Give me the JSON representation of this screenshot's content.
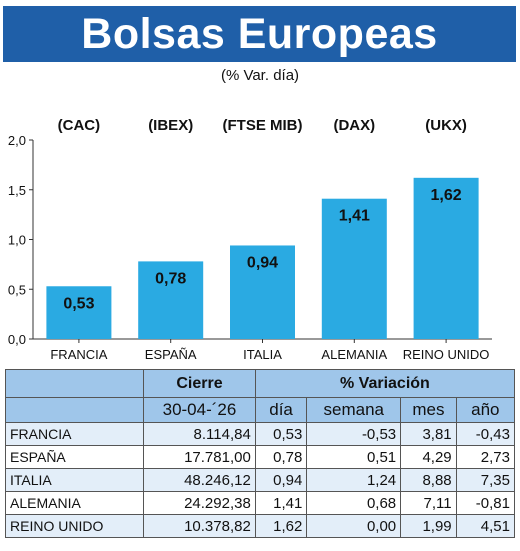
{
  "header": {
    "title": "Bolsas Europeas",
    "subtitle": "(% Var. día)"
  },
  "chart_data": {
    "type": "bar",
    "index_labels": [
      "(CAC)",
      "(IBEX)",
      "(FTSE MIB)",
      "(DAX)",
      "(UKX)"
    ],
    "categories": [
      "FRANCIA",
      "ESPAÑA",
      "ITALIA",
      "ALEMANIA",
      "REINO UNIDO"
    ],
    "values": [
      0.53,
      0.78,
      0.94,
      1.41,
      1.62
    ],
    "value_labels": [
      "0,53",
      "0,78",
      "0,94",
      "1,41",
      "1,62"
    ],
    "ylim": [
      0,
      2
    ],
    "yticks": [
      0,
      0.5,
      1.0,
      1.5,
      2.0
    ],
    "ytick_labels": [
      "0,0",
      "0,5",
      "1,0",
      "1,5",
      "2,0"
    ],
    "bar_color": "#2aaae2",
    "grid": false
  },
  "table": {
    "group_headers": [
      "Cierre",
      "% Variación"
    ],
    "column_headers": [
      "30-04-´26",
      "día",
      "semana",
      "mes",
      "año"
    ],
    "rows": [
      {
        "country": "FRANCIA",
        "cierre": "8.114,84",
        "dia": "0,53",
        "semana": "-0,53",
        "mes": "3,81",
        "anio": "-0,43"
      },
      {
        "country": "ESPAÑA",
        "cierre": "17.781,00",
        "dia": "0,78",
        "semana": "0,51",
        "mes": "4,29",
        "anio": "2,73"
      },
      {
        "country": "ITALIA",
        "cierre": "48.246,12",
        "dia": "0,94",
        "semana": "1,24",
        "mes": "8,88",
        "anio": "7,35"
      },
      {
        "country": "ALEMANIA",
        "cierre": "24.292,38",
        "dia": "1,41",
        "semana": "0,68",
        "mes": "7,11",
        "anio": "-0,81"
      },
      {
        "country": "REINO UNIDO",
        "cierre": "10.378,82",
        "dia": "1,62",
        "semana": "0,00",
        "mes": "1,99",
        "anio": "4,51"
      }
    ]
  },
  "colors": {
    "title_bg": "#1f5fa8",
    "table_header_bg": "#9fc6ea",
    "row_alt_bg": "#e3eef9"
  }
}
